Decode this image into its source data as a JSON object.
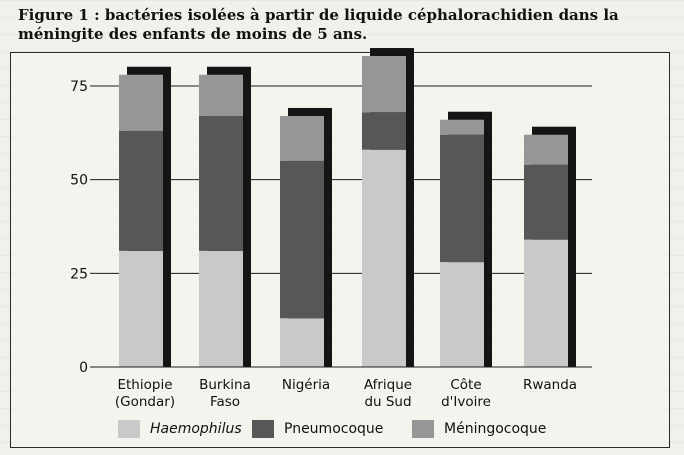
{
  "title": "Figure 1 : bactéries isolées à partir de liquide céphalorachidien dans la méningite des enfants de moins de 5 ans.",
  "colors": {
    "haemophilus": "#c9c9c9",
    "pneumocoque": "#575757",
    "meningocoque": "#969696",
    "shadow": "#141414"
  },
  "chart_data": {
    "type": "bar",
    "stacked": true,
    "categories": [
      "Ethiopie\n(Gondar)",
      "Burkina\nFaso",
      "Nigéria",
      "Afrique\ndu Sud",
      "Côte\nd'Ivoire",
      "Rwanda"
    ],
    "series": [
      {
        "name": "Haemophilus",
        "values": [
          31,
          31,
          13,
          58,
          28,
          34
        ]
      },
      {
        "name": "Pneumocoque",
        "values": [
          32,
          36,
          42,
          10,
          34,
          20
        ]
      },
      {
        "name": "Méningocoque",
        "values": [
          15,
          11,
          12,
          15,
          4,
          8
        ]
      }
    ],
    "yticks": [
      0,
      25,
      50,
      75
    ],
    "ylim": [
      0,
      80
    ],
    "grid": true,
    "legend_position": "bottom"
  },
  "legend": [
    {
      "label": "Haemophilus",
      "italic": true
    },
    {
      "label": "Pneumocoque",
      "italic": false
    },
    {
      "label": "Méningocoque",
      "italic": false
    }
  ]
}
